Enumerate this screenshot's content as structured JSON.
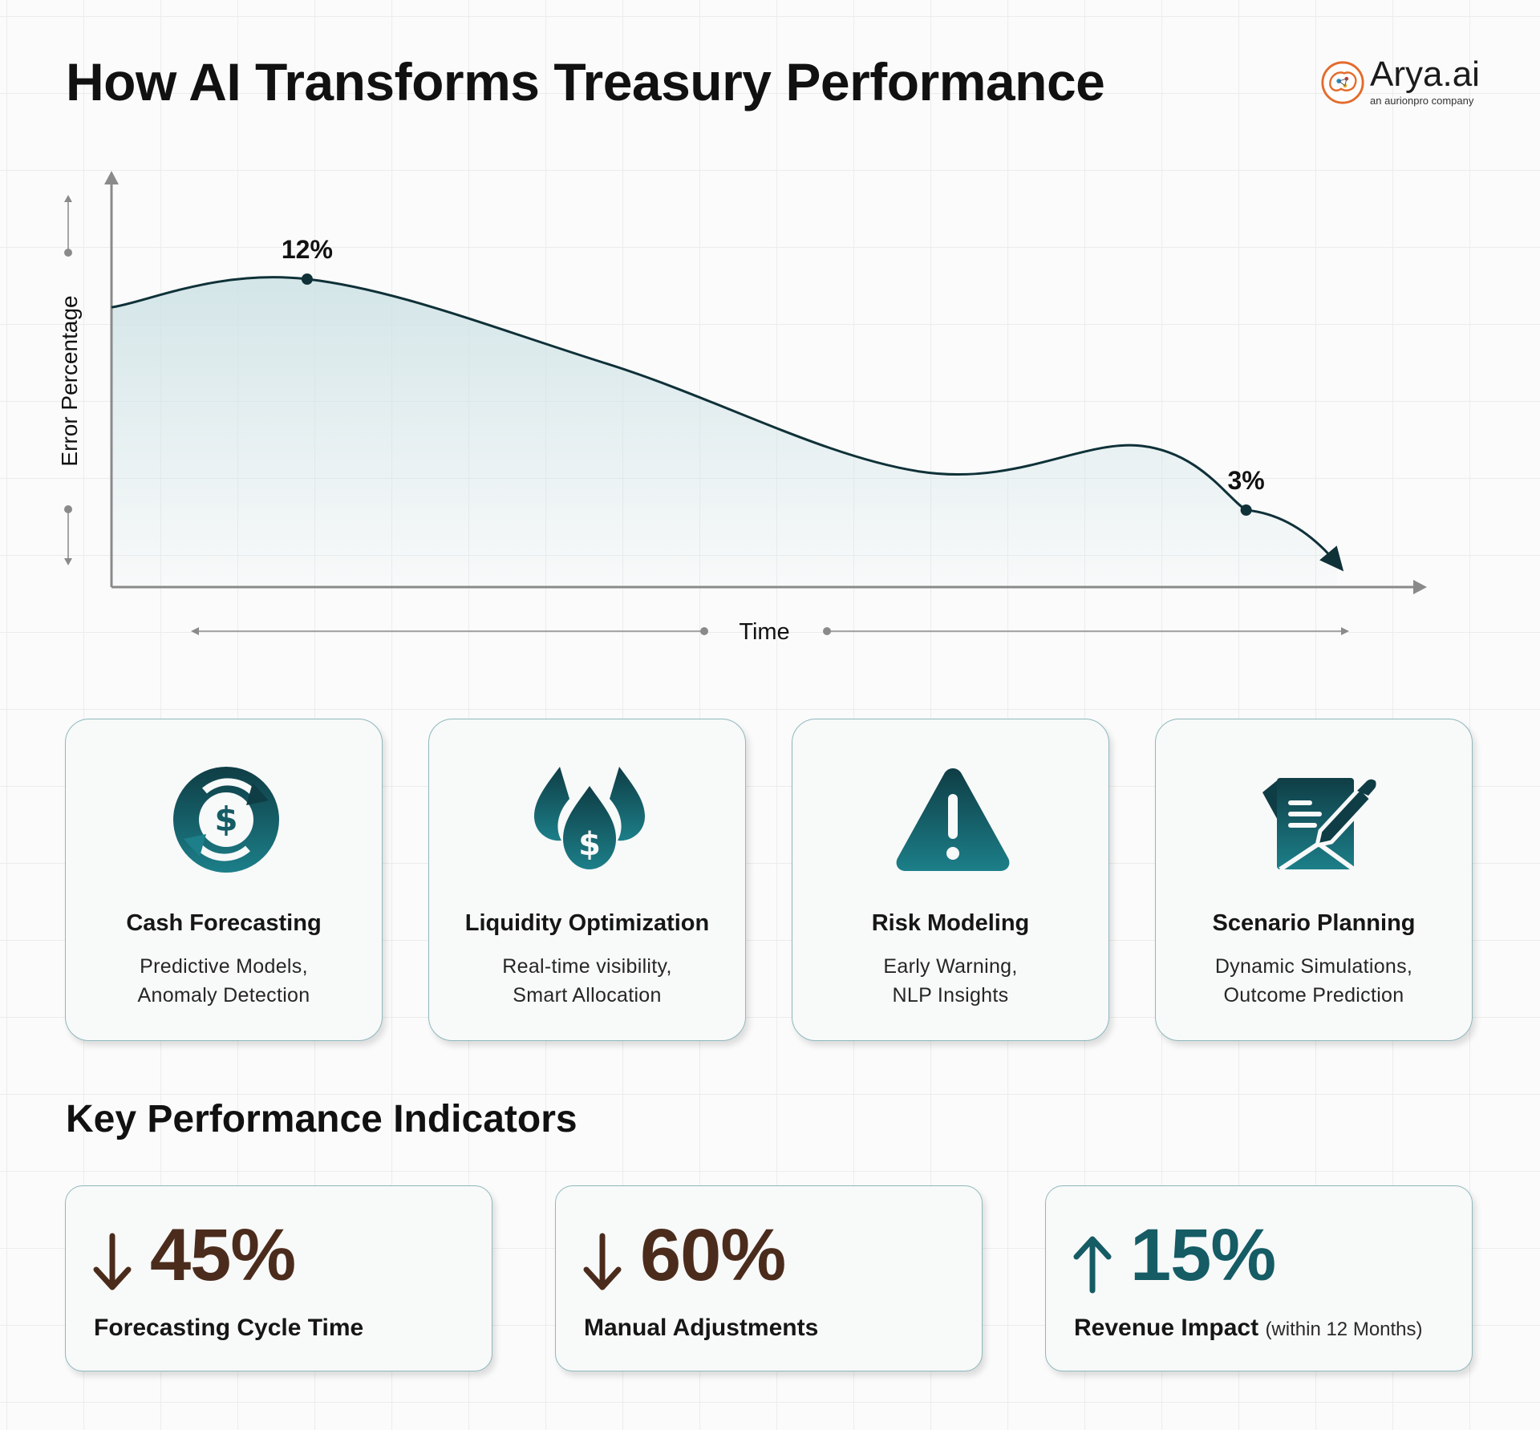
{
  "header": {
    "title": "How AI Transforms Treasury Performance",
    "logo": {
      "wordmark": "Arya.ai",
      "tagline": "an aurionpro company",
      "icon": "brain-icon"
    }
  },
  "chart_data": {
    "type": "line",
    "title": "",
    "xlabel": "Time",
    "ylabel": "Error Percentage",
    "y_unit": "%",
    "ylim": [
      0,
      16
    ],
    "grid": false,
    "legend": "none",
    "series": [
      {
        "name": "",
        "color": "#0f3138",
        "x": [
          0,
          0.15,
          0.38,
          0.62,
          0.79,
          0.87
        ],
        "y": [
          10.9,
          12,
          8.7,
          4.5,
          5.5,
          3
        ]
      }
    ],
    "annotations": [
      {
        "x": 0.15,
        "y": 12,
        "label": "12%"
      },
      {
        "x": 0.87,
        "y": 3,
        "label": "3%"
      }
    ],
    "trend": {
      "direction": "down",
      "icon": "arrowhead-icon",
      "end": {
        "x": 0.94,
        "y": 0.9
      }
    }
  },
  "features": [
    {
      "title": "Cash Forecasting",
      "lines": [
        "Predictive Models,",
        "Anomaly Detection"
      ],
      "icon": "cash-cycle-icon"
    },
    {
      "title": "Liquidity Optimization",
      "lines": [
        "Real-time visibility,",
        "Smart Allocation"
      ],
      "icon": "liquidity-drops-icon"
    },
    {
      "title": "Risk Modeling",
      "lines": [
        "Early Warning,",
        "NLP Insights"
      ],
      "icon": "warning-icon"
    },
    {
      "title": "Scenario Planning",
      "lines": [
        "Dynamic Simulations,",
        "Outcome Prediction"
      ],
      "icon": "document-pen-icon"
    }
  ],
  "kpi": {
    "heading": "Key Performance Indicators",
    "items": [
      {
        "direction": "down",
        "value": "45%",
        "label": "Forecasting Cycle Time",
        "note": "",
        "icon": "arrow-down-icon"
      },
      {
        "direction": "down",
        "value": "60%",
        "label": "Manual Adjustments",
        "note": "",
        "icon": "arrow-down-icon"
      },
      {
        "direction": "up",
        "value": "15%",
        "label": "Revenue Impact",
        "note": "(within 12 Months)",
        "icon": "arrow-up-icon"
      }
    ]
  },
  "colors": {
    "accent_teal": "#155c65",
    "accent_brown": "#4b2c1c",
    "card_border": "#8fb8bd",
    "line": "#0f3138"
  }
}
